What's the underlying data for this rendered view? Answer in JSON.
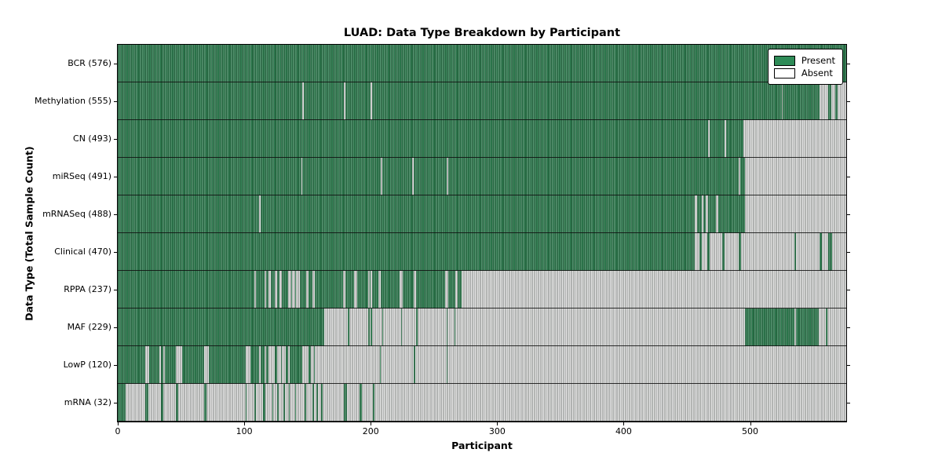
{
  "title": "LUAD: Data Type Breakdown by Participant",
  "axes": {
    "xlabel": "Participant",
    "ylabel": "Data Type (Total Sample Count)"
  },
  "legend": {
    "present_label": "Present",
    "absent_label": "Absent"
  },
  "colors": {
    "present": "#2e7d50",
    "absent": "#dcdcdc",
    "legend_present": "#2e8b57",
    "legend_absent": "#ffffff"
  },
  "chart_data": {
    "type": "heatmap",
    "title": "LUAD: Data Type Breakdown by Participant",
    "xlabel": "Participant",
    "ylabel": "Data Type (Total Sample Count)",
    "n_participants": 576,
    "x_ticks": [
      0,
      100,
      200,
      300,
      400,
      500
    ],
    "xlim": [
      0,
      576
    ],
    "legend_entries": [
      "Present",
      "Absent"
    ],
    "legend_position": "upper right",
    "grid": false,
    "note": "Each row is a data type; each of the 576 participant columns is Present (green) or Absent (gray). present_runs are half-open [start,end) participant index ranges.",
    "rows": [
      {
        "name": "BCR",
        "label": "BCR (576)",
        "count": 576,
        "present_runs": [
          [
            0,
            576
          ]
        ]
      },
      {
        "name": "Methylation",
        "label": "Methylation (555)",
        "count": 555,
        "present_runs": [
          [
            0,
            146
          ],
          [
            147,
            179
          ],
          [
            180,
            200
          ],
          [
            201,
            525
          ],
          [
            526,
            555
          ],
          [
            562,
            564
          ],
          [
            567,
            569
          ]
        ]
      },
      {
        "name": "CN",
        "label": "CN (493)",
        "count": 493,
        "present_runs": [
          [
            0,
            467
          ],
          [
            468,
            480
          ],
          [
            481,
            495
          ]
        ]
      },
      {
        "name": "miRSeq",
        "label": "miRSeq (491)",
        "count": 491,
        "present_runs": [
          [
            0,
            145
          ],
          [
            146,
            208
          ],
          [
            209,
            233
          ],
          [
            234,
            260
          ],
          [
            261,
            491
          ],
          [
            492,
            496
          ]
        ]
      },
      {
        "name": "mRNASeq",
        "label": "mRNASeq (488)",
        "count": 488,
        "present_runs": [
          [
            0,
            112
          ],
          [
            113,
            456
          ],
          [
            458,
            462
          ],
          [
            463,
            465
          ],
          [
            467,
            473
          ],
          [
            475,
            496
          ]
        ]
      },
      {
        "name": "Clinical",
        "label": "Clinical (470)",
        "count": 470,
        "present_runs": [
          [
            0,
            456
          ],
          [
            460,
            462
          ],
          [
            466,
            468
          ],
          [
            478,
            480
          ],
          [
            491,
            493
          ],
          [
            535,
            536
          ],
          [
            555,
            557
          ],
          [
            562,
            565
          ]
        ]
      },
      {
        "name": "RPPA",
        "label": "RPPA (237)",
        "count": 237,
        "present_runs": [
          [
            0,
            108
          ],
          [
            109,
            116
          ],
          [
            117,
            119
          ],
          [
            121,
            124
          ],
          [
            126,
            128
          ],
          [
            130,
            135
          ],
          [
            137,
            138
          ],
          [
            140,
            141
          ],
          [
            144,
            149
          ],
          [
            151,
            154
          ],
          [
            156,
            178
          ],
          [
            180,
            187
          ],
          [
            189,
            198
          ],
          [
            199,
            200
          ],
          [
            201,
            206
          ],
          [
            208,
            223
          ],
          [
            225,
            234
          ],
          [
            236,
            259
          ],
          [
            261,
            267
          ],
          [
            269,
            272
          ]
        ]
      },
      {
        "name": "MAF",
        "label": "MAF (229)",
        "count": 229,
        "present_runs": [
          [
            0,
            163
          ],
          [
            182,
            183
          ],
          [
            198,
            199
          ],
          [
            200,
            201
          ],
          [
            209,
            210
          ],
          [
            224,
            225
          ],
          [
            236,
            237
          ],
          [
            260,
            261
          ],
          [
            266,
            267
          ],
          [
            496,
            535
          ],
          [
            536,
            554
          ],
          [
            560,
            561
          ]
        ]
      },
      {
        "name": "LowP",
        "label": "LowP (120)",
        "count": 120,
        "present_runs": [
          [
            0,
            22
          ],
          [
            25,
            33
          ],
          [
            34,
            36
          ],
          [
            37,
            46
          ],
          [
            51,
            68
          ],
          [
            72,
            101
          ],
          [
            105,
            112
          ],
          [
            113,
            116
          ],
          [
            117,
            119
          ],
          [
            124,
            126
          ],
          [
            129,
            130
          ],
          [
            133,
            135
          ],
          [
            136,
            146
          ],
          [
            151,
            153
          ],
          [
            155,
            156
          ],
          [
            207,
            208
          ],
          [
            234,
            235
          ],
          [
            260,
            261
          ]
        ]
      },
      {
        "name": "mRNA",
        "label": "mRNA (32)",
        "count": 32,
        "present_runs": [
          [
            0,
            6
          ],
          [
            22,
            24
          ],
          [
            34,
            36
          ],
          [
            46,
            48
          ],
          [
            68,
            70
          ],
          [
            101,
            102
          ],
          [
            108,
            109
          ],
          [
            115,
            117
          ],
          [
            122,
            123
          ],
          [
            126,
            127
          ],
          [
            131,
            132
          ],
          [
            135,
            136
          ],
          [
            140,
            141
          ],
          [
            148,
            149
          ],
          [
            154,
            155
          ],
          [
            157,
            158
          ],
          [
            161,
            162
          ],
          [
            179,
            181
          ],
          [
            191,
            193
          ],
          [
            202,
            203
          ]
        ]
      }
    ]
  }
}
